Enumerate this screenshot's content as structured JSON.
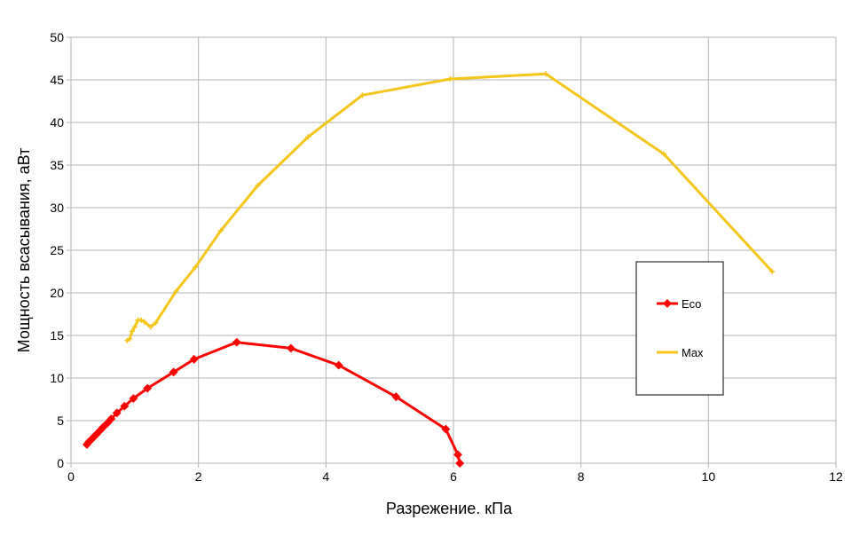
{
  "chart_data": {
    "type": "line",
    "title": "",
    "xlabel": "Разрежение. кПа",
    "ylabel": "Мощность всасывания, аВт",
    "xlim": [
      0,
      12
    ],
    "ylim": [
      0,
      50
    ],
    "xticks": [
      0,
      2,
      4,
      6,
      8,
      10,
      12
    ],
    "yticks": [
      0,
      5,
      10,
      15,
      20,
      25,
      30,
      35,
      40,
      45,
      50
    ],
    "grid": true,
    "legend_position": "right",
    "series": [
      {
        "name": "Eco",
        "color": "#ff0000",
        "marker": "diamond",
        "points": [
          [
            0.25,
            2.2
          ],
          [
            0.28,
            2.5
          ],
          [
            0.32,
            2.8
          ],
          [
            0.36,
            3.1
          ],
          [
            0.4,
            3.4
          ],
          [
            0.45,
            3.8
          ],
          [
            0.5,
            4.2
          ],
          [
            0.57,
            4.7
          ],
          [
            0.63,
            5.2
          ],
          [
            0.72,
            5.9
          ],
          [
            0.84,
            6.7
          ],
          [
            0.98,
            7.6
          ],
          [
            1.2,
            8.8
          ],
          [
            1.61,
            10.7
          ],
          [
            1.93,
            12.2
          ],
          [
            2.6,
            14.2
          ],
          [
            3.45,
            13.5
          ],
          [
            4.2,
            11.5
          ],
          [
            5.1,
            7.8
          ],
          [
            5.88,
            4.0
          ],
          [
            6.07,
            1.0
          ],
          [
            6.1,
            0.0
          ]
        ]
      },
      {
        "name": "Max",
        "color": "#f5c518",
        "marker": "cross",
        "points": [
          [
            0.88,
            14.4
          ],
          [
            0.92,
            14.6
          ],
          [
            0.96,
            15.5
          ],
          [
            1.0,
            16.0
          ],
          [
            1.05,
            16.8
          ],
          [
            1.1,
            16.8
          ],
          [
            1.15,
            16.6
          ],
          [
            1.25,
            16.0
          ],
          [
            1.33,
            16.5
          ],
          [
            1.65,
            20.2
          ],
          [
            1.95,
            23.0
          ],
          [
            2.35,
            27.3
          ],
          [
            2.93,
            32.6
          ],
          [
            3.72,
            38.3
          ],
          [
            4.57,
            43.2
          ],
          [
            5.95,
            45.1
          ],
          [
            7.45,
            45.7
          ],
          [
            9.3,
            36.3
          ],
          [
            11.0,
            22.5
          ]
        ]
      }
    ]
  }
}
